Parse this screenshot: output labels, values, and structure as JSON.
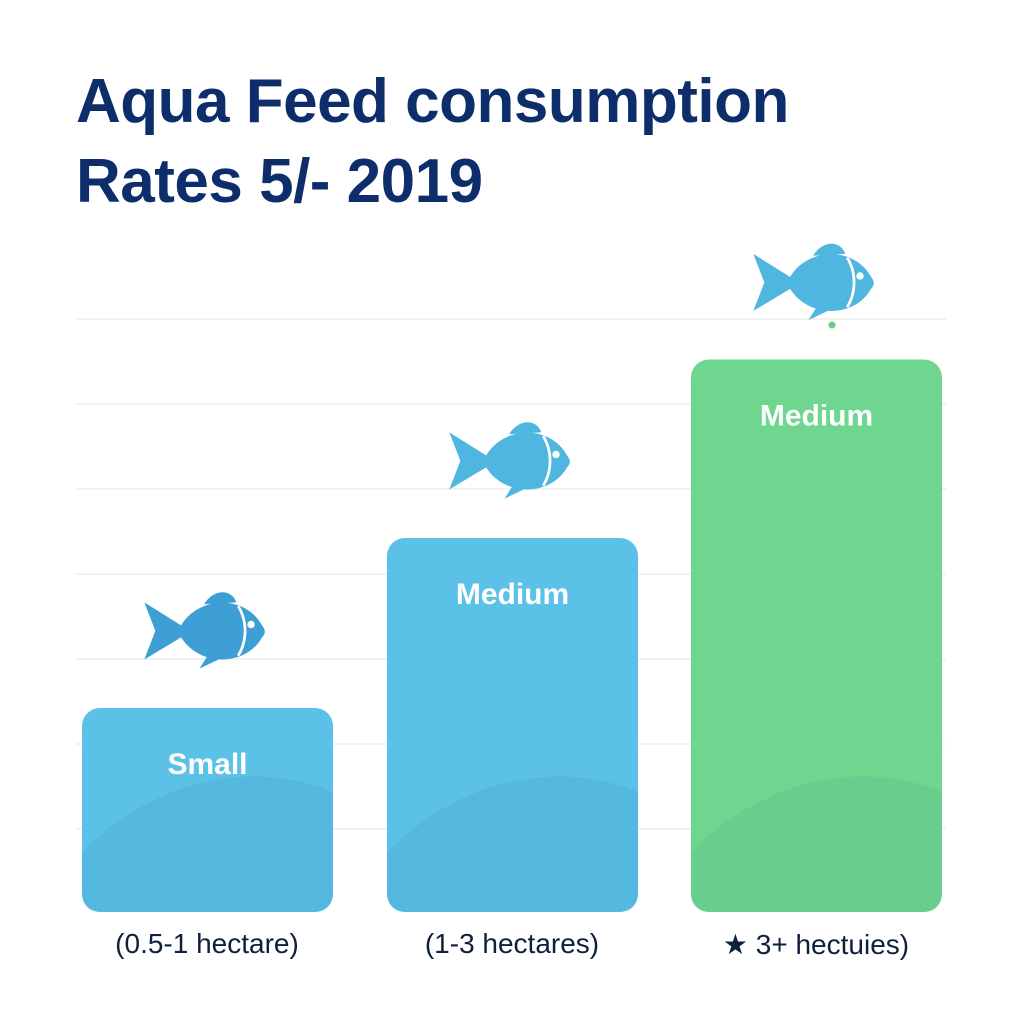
{
  "title_line1": "Aqua Feed consumption",
  "title_line2": "Rates 5/- 2019",
  "colors": {
    "title": "#0d2d6b",
    "blue_bar": "#5bc1e6",
    "green_bar": "#6fd68f",
    "fish": "#4fb7df",
    "grid": "#eeeeee"
  },
  "chart_data": {
    "type": "bar",
    "title": "Aqua Feed consumption Rates 5/- 2019",
    "xlabel": "",
    "ylabel": "",
    "categories": [
      "(0.5-1 hectare)",
      "(1-3 hectares)",
      "★ 3+ hectuies)"
    ],
    "bar_labels": [
      "Small",
      "Medium",
      "Medium"
    ],
    "values": [
      2.4,
      4.4,
      6.5
    ],
    "ylim": [
      0,
      7.5
    ],
    "y_axis_shown": false,
    "grid": true,
    "bar_colors": [
      "#5bc1e6",
      "#5bc1e6",
      "#6fd68f"
    ],
    "icons": [
      "fish-icon",
      "fish-icon",
      "fish-icon"
    ]
  }
}
